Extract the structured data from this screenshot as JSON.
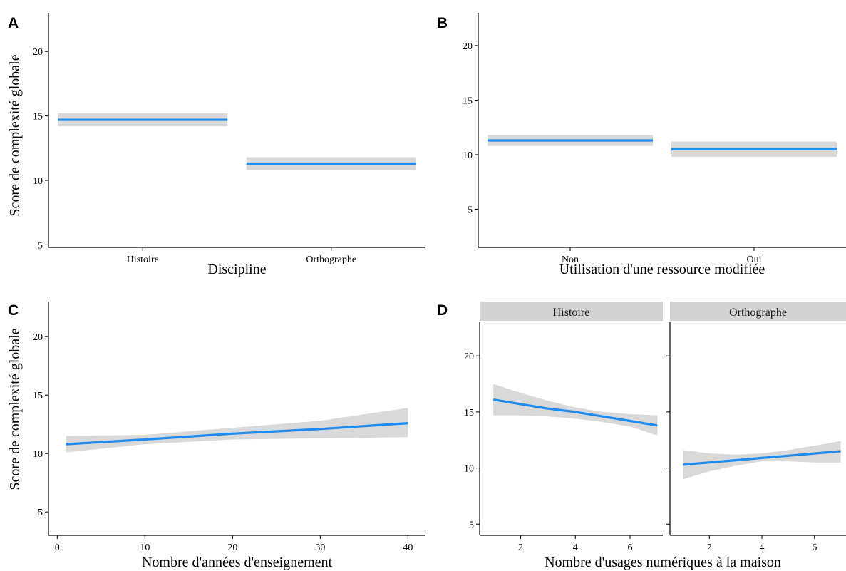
{
  "chart_data": [
    {
      "panel": "A",
      "type": "line",
      "x_scale": "discrete",
      "categories": [
        "Histoire",
        "Orthographe"
      ],
      "series": [
        {
          "estimate": [
            14.7,
            11.3
          ],
          "ci_low": [
            14.2,
            10.8
          ],
          "ci_high": [
            15.2,
            11.8
          ]
        }
      ],
      "xlabel": "Discipline",
      "ylabel": "Score de complexité globale",
      "ylim": [
        4.8,
        23.0
      ],
      "yticks": [
        5,
        10,
        15,
        20
      ],
      "grid": false,
      "colors": {
        "line": "#1e8cf0",
        "ribbon": "#d9d9d9"
      }
    },
    {
      "panel": "B",
      "type": "line",
      "x_scale": "discrete",
      "categories": [
        "Non",
        "Oui"
      ],
      "series": [
        {
          "estimate": [
            11.3,
            10.5
          ],
          "ci_low": [
            10.8,
            9.8
          ],
          "ci_high": [
            11.8,
            11.2
          ]
        }
      ],
      "xlabel": "Utilisation d'une ressource modifiée",
      "ylabel": "",
      "ylim": [
        1.5,
        23.0
      ],
      "yticks": [
        5,
        10,
        15,
        20
      ],
      "grid": false,
      "colors": {
        "line": "#1e8cf0",
        "ribbon": "#d9d9d9"
      }
    },
    {
      "panel": "C",
      "type": "line",
      "x": [
        1,
        10,
        20,
        30,
        40
      ],
      "series": [
        {
          "estimate": [
            10.8,
            11.2,
            11.7,
            12.1,
            12.6
          ],
          "ci_low": [
            10.1,
            10.8,
            11.2,
            11.3,
            11.4
          ],
          "ci_high": [
            11.5,
            11.6,
            12.2,
            12.8,
            13.9
          ]
        }
      ],
      "xlabel": "Nombre d'années d'enseignement",
      "ylabel": "Score de complexité globale",
      "xlim": [
        -1,
        42
      ],
      "xticks": [
        0,
        10,
        20,
        30,
        40
      ],
      "ylim": [
        3.0,
        23.0
      ],
      "yticks": [
        5,
        10,
        15,
        20
      ],
      "grid": false,
      "colors": {
        "line": "#1e8cf0",
        "ribbon": "#d9d9d9"
      }
    },
    {
      "panel": "D",
      "type": "line",
      "facets": [
        "Histoire",
        "Orthographe"
      ],
      "series": [
        {
          "facet": "Histoire",
          "x": [
            1,
            2,
            3,
            4,
            5,
            6,
            7
          ],
          "estimate": [
            16.1,
            15.7,
            15.3,
            15.0,
            14.6,
            14.2,
            13.8
          ],
          "ci_low": [
            14.7,
            14.7,
            14.6,
            14.4,
            14.1,
            13.7,
            12.9
          ],
          "ci_high": [
            17.5,
            16.7,
            16.0,
            15.4,
            15.0,
            14.8,
            14.7
          ]
        },
        {
          "facet": "Orthographe",
          "x": [
            1,
            2,
            3,
            4,
            5,
            6,
            7
          ],
          "estimate": [
            10.3,
            10.5,
            10.7,
            10.9,
            11.1,
            11.3,
            11.5
          ],
          "ci_low": [
            9.0,
            9.7,
            10.2,
            10.6,
            10.6,
            10.5,
            10.5
          ],
          "ci_high": [
            11.6,
            11.3,
            11.2,
            11.3,
            11.6,
            12.0,
            12.4
          ]
        }
      ],
      "xlabel": "Nombre d'usages numériques à la maison",
      "ylabel": "",
      "xlim": [
        0.5,
        7.2
      ],
      "xticks": [
        2,
        4,
        6
      ],
      "ylim": [
        4.0,
        23.0
      ],
      "yticks": [
        5,
        10,
        15,
        20
      ],
      "grid": false,
      "colors": {
        "line": "#1e8cf0",
        "ribbon": "#d9d9d9",
        "strip": "#d3d3d3"
      }
    }
  ]
}
